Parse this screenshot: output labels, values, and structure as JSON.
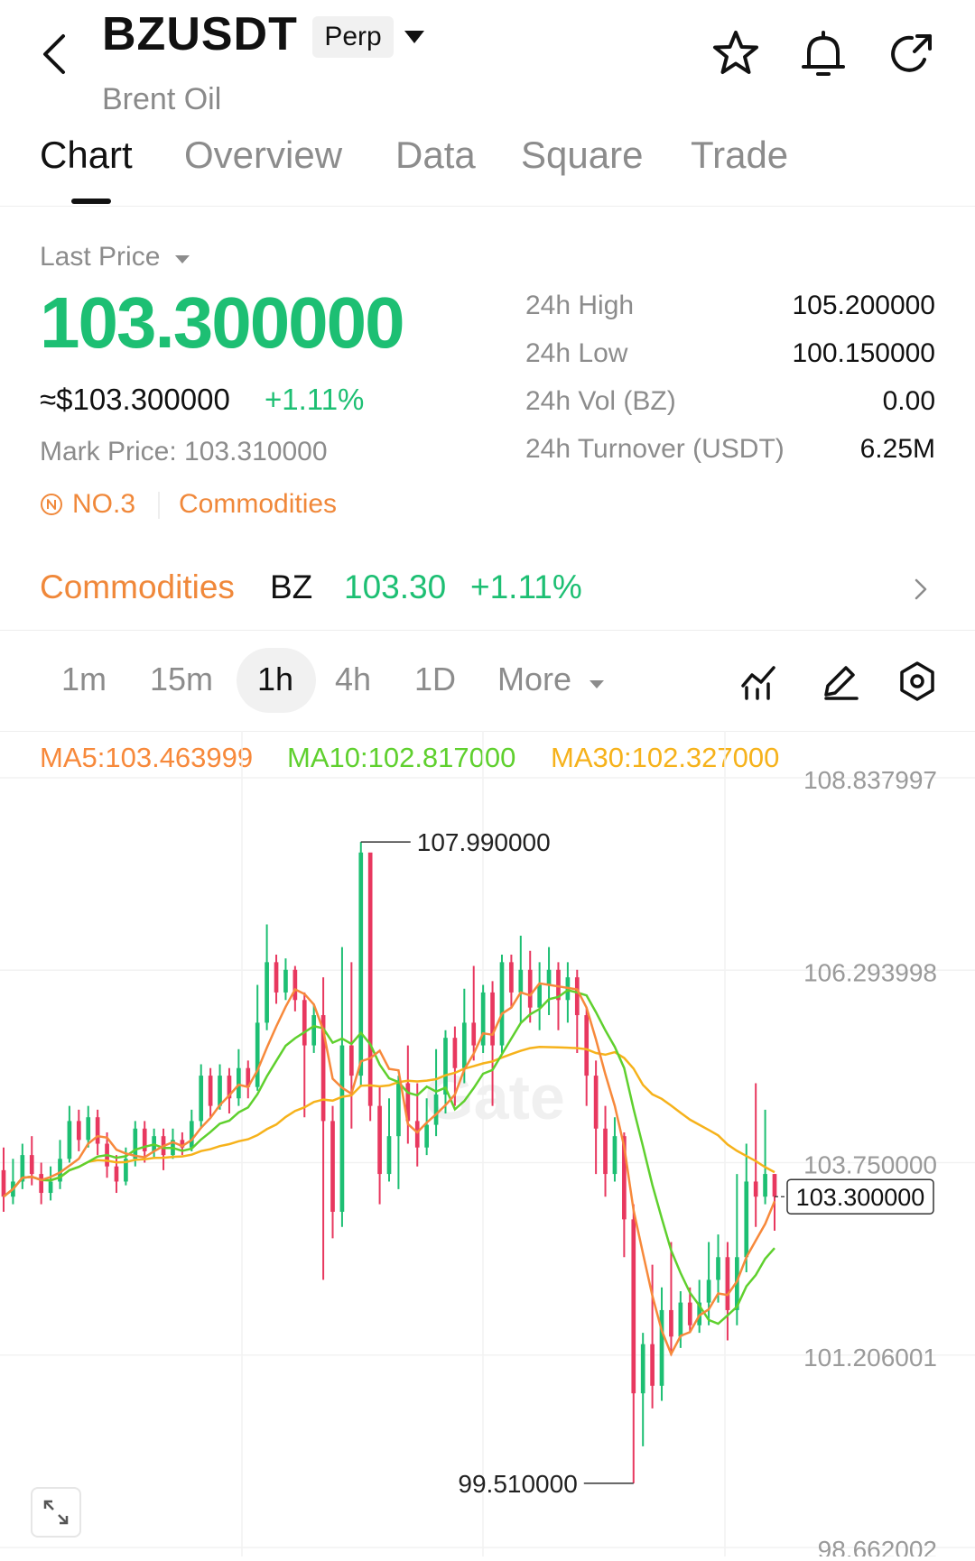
{
  "header": {
    "symbol": "BZUSDT",
    "badge": "Perp",
    "subtitle": "Brent Oil"
  },
  "tabs": [
    {
      "label": "Chart",
      "active": true
    },
    {
      "label": "Overview"
    },
    {
      "label": "Data"
    },
    {
      "label": "Square"
    },
    {
      "label": "Trade"
    }
  ],
  "price": {
    "label": "Last Price",
    "value": "103.300000",
    "usd": "≈$103.300000",
    "change": "+1.11%",
    "mark": "Mark Price: 103.310000",
    "rank": "NO.3",
    "category": "Commodities"
  },
  "stats": [
    {
      "label": "24h  High",
      "value": "105.200000"
    },
    {
      "label": "24h  Low",
      "value": "100.150000"
    },
    {
      "label": "24h  Vol (BZ)",
      "value": "0.00"
    },
    {
      "label": "24h  Turnover (USDT)",
      "value": "6.25M"
    }
  ],
  "commodity_bar": {
    "label": "Commodities",
    "symbol": "BZ",
    "price": "103.30",
    "change": "+1.11%"
  },
  "intervals": {
    "items": [
      "1m",
      "15m",
      "1h",
      "4h",
      "1D"
    ],
    "active": "1h",
    "more": "More"
  },
  "colors": {
    "up": "#1dbf73",
    "down": "#e8385f",
    "accent": "#f0883a",
    "ma5": "#f7893b",
    "ma10": "#5fd02e",
    "ma30": "#f6b21b"
  },
  "chart_data": {
    "type": "candlestick",
    "interval": "1h",
    "ma_labels": {
      "ma5": "MA5:103.463999",
      "ma10": "MA10:102.817000",
      "ma30": "MA30:102.327000"
    },
    "y_ticks": [
      "108.837997",
      "106.293998",
      "103.750000",
      "101.206001",
      "98.662002"
    ],
    "ylim": [
      98.662002,
      108.837997
    ],
    "max_label": "107.990000",
    "min_label": "99.510000",
    "current_price": "103.300000",
    "watermark": "Gate",
    "grid": true,
    "candles": [
      {
        "o": 103.65,
        "c": 103.3,
        "h": 103.95,
        "l": 103.1
      },
      {
        "o": 103.3,
        "c": 103.5,
        "h": 103.8,
        "l": 103.2
      },
      {
        "o": 103.5,
        "c": 103.85,
        "h": 104.0,
        "l": 103.4
      },
      {
        "o": 103.85,
        "c": 103.6,
        "h": 104.1,
        "l": 103.45
      },
      {
        "o": 103.6,
        "c": 103.35,
        "h": 103.75,
        "l": 103.2
      },
      {
        "o": 103.35,
        "c": 103.5,
        "h": 103.7,
        "l": 103.25
      },
      {
        "o": 103.5,
        "c": 103.8,
        "h": 104.05,
        "l": 103.4
      },
      {
        "o": 103.8,
        "c": 104.3,
        "h": 104.5,
        "l": 103.75
      },
      {
        "o": 104.3,
        "c": 104.05,
        "h": 104.45,
        "l": 103.9
      },
      {
        "o": 104.05,
        "c": 104.35,
        "h": 104.5,
        "l": 103.95
      },
      {
        "o": 104.35,
        "c": 104.0,
        "h": 104.45,
        "l": 103.85
      },
      {
        "o": 104.0,
        "c": 103.7,
        "h": 104.15,
        "l": 103.55
      },
      {
        "o": 103.7,
        "c": 103.5,
        "h": 103.85,
        "l": 103.35
      },
      {
        "o": 103.5,
        "c": 103.8,
        "h": 103.95,
        "l": 103.45
      },
      {
        "o": 103.8,
        "c": 104.2,
        "h": 104.3,
        "l": 103.7
      },
      {
        "o": 104.2,
        "c": 103.9,
        "h": 104.3,
        "l": 103.75
      },
      {
        "o": 103.9,
        "c": 104.1,
        "h": 104.2,
        "l": 103.8
      },
      {
        "o": 104.1,
        "c": 103.85,
        "h": 104.2,
        "l": 103.65
      },
      {
        "o": 103.85,
        "c": 104.05,
        "h": 104.2,
        "l": 103.8
      },
      {
        "o": 104.05,
        "c": 103.95,
        "h": 104.15,
        "l": 103.85
      },
      {
        "o": 103.95,
        "c": 104.3,
        "h": 104.45,
        "l": 103.9
      },
      {
        "o": 104.3,
        "c": 104.9,
        "h": 105.05,
        "l": 104.2
      },
      {
        "o": 104.9,
        "c": 104.5,
        "h": 105.0,
        "l": 104.35
      },
      {
        "o": 104.5,
        "c": 104.9,
        "h": 105.05,
        "l": 104.45
      },
      {
        "o": 104.9,
        "c": 104.6,
        "h": 105.0,
        "l": 104.4
      },
      {
        "o": 104.6,
        "c": 105.0,
        "h": 105.25,
        "l": 104.5
      },
      {
        "o": 105.0,
        "c": 104.75,
        "h": 105.1,
        "l": 104.6
      },
      {
        "o": 104.75,
        "c": 105.6,
        "h": 106.1,
        "l": 104.7
      },
      {
        "o": 105.6,
        "c": 106.4,
        "h": 106.9,
        "l": 105.5
      },
      {
        "o": 106.4,
        "c": 106.0,
        "h": 106.5,
        "l": 105.85
      },
      {
        "o": 106.0,
        "c": 106.3,
        "h": 106.45,
        "l": 105.9
      },
      {
        "o": 106.3,
        "c": 105.9,
        "h": 106.35,
        "l": 105.75
      },
      {
        "o": 105.9,
        "c": 105.3,
        "h": 106.0,
        "l": 104.35
      },
      {
        "o": 105.3,
        "c": 105.7,
        "h": 105.85,
        "l": 105.2
      },
      {
        "o": 105.7,
        "c": 104.3,
        "h": 106.2,
        "l": 102.2
      },
      {
        "o": 104.3,
        "c": 103.1,
        "h": 104.5,
        "l": 102.75
      },
      {
        "o": 103.1,
        "c": 105.3,
        "h": 106.6,
        "l": 102.9
      },
      {
        "o": 105.3,
        "c": 104.9,
        "h": 106.4,
        "l": 104.2
      },
      {
        "o": 104.9,
        "c": 107.85,
        "h": 107.99,
        "l": 104.75
      },
      {
        "o": 107.85,
        "c": 104.5,
        "h": 107.8,
        "l": 104.3
      },
      {
        "o": 104.5,
        "c": 103.6,
        "h": 104.75,
        "l": 103.2
      },
      {
        "o": 103.6,
        "c": 104.1,
        "h": 104.6,
        "l": 103.5
      },
      {
        "o": 104.1,
        "c": 104.8,
        "h": 104.9,
        "l": 103.4
      },
      {
        "o": 104.8,
        "c": 104.3,
        "h": 105.3,
        "l": 104.0
      },
      {
        "o": 104.3,
        "c": 103.95,
        "h": 104.8,
        "l": 103.7
      },
      {
        "o": 103.95,
        "c": 104.25,
        "h": 104.6,
        "l": 103.85
      },
      {
        "o": 104.25,
        "c": 104.65,
        "h": 105.25,
        "l": 104.1
      },
      {
        "o": 104.65,
        "c": 105.4,
        "h": 105.5,
        "l": 104.4
      },
      {
        "o": 105.4,
        "c": 105.0,
        "h": 105.55,
        "l": 104.5
      },
      {
        "o": 105.0,
        "c": 105.6,
        "h": 106.05,
        "l": 104.8
      },
      {
        "o": 105.6,
        "c": 105.3,
        "h": 106.35,
        "l": 105.1
      },
      {
        "o": 105.3,
        "c": 106.0,
        "h": 106.1,
        "l": 105.2
      },
      {
        "o": 106.0,
        "c": 105.3,
        "h": 106.15,
        "l": 104.5
      },
      {
        "o": 105.3,
        "c": 106.4,
        "h": 106.5,
        "l": 105.2
      },
      {
        "o": 106.4,
        "c": 106.0,
        "h": 106.5,
        "l": 105.8
      },
      {
        "o": 106.0,
        "c": 106.3,
        "h": 106.75,
        "l": 105.6
      },
      {
        "o": 106.3,
        "c": 105.8,
        "h": 106.55,
        "l": 105.6
      },
      {
        "o": 105.8,
        "c": 106.1,
        "h": 106.4,
        "l": 105.5
      },
      {
        "o": 106.1,
        "c": 106.3,
        "h": 106.6,
        "l": 105.7
      },
      {
        "o": 106.3,
        "c": 105.9,
        "h": 106.4,
        "l": 105.5
      },
      {
        "o": 105.9,
        "c": 106.2,
        "h": 106.4,
        "l": 105.6
      },
      {
        "o": 106.2,
        "c": 105.7,
        "h": 106.3,
        "l": 105.2
      },
      {
        "o": 105.7,
        "c": 104.9,
        "h": 105.8,
        "l": 104.5
      },
      {
        "o": 104.9,
        "c": 104.2,
        "h": 105.1,
        "l": 103.6
      },
      {
        "o": 104.2,
        "c": 103.6,
        "h": 104.5,
        "l": 103.3
      },
      {
        "o": 103.6,
        "c": 104.1,
        "h": 104.35,
        "l": 103.5
      },
      {
        "o": 104.1,
        "c": 103.0,
        "h": 104.15,
        "l": 102.5
      },
      {
        "o": 103.0,
        "c": 100.7,
        "h": 103.2,
        "l": 99.51
      },
      {
        "o": 100.7,
        "c": 101.35,
        "h": 101.5,
        "l": 100.0
      },
      {
        "o": 101.35,
        "c": 100.8,
        "h": 102.4,
        "l": 100.5
      },
      {
        "o": 100.8,
        "c": 101.8,
        "h": 102.1,
        "l": 100.6
      },
      {
        "o": 101.8,
        "c": 101.45,
        "h": 102.7,
        "l": 101.2
      },
      {
        "o": 101.45,
        "c": 101.9,
        "h": 102.05,
        "l": 101.3
      },
      {
        "o": 101.9,
        "c": 101.6,
        "h": 102.1,
        "l": 101.5
      },
      {
        "o": 101.6,
        "c": 101.9,
        "h": 102.2,
        "l": 101.5
      },
      {
        "o": 101.9,
        "c": 102.2,
        "h": 102.7,
        "l": 101.6
      },
      {
        "o": 102.2,
        "c": 102.5,
        "h": 102.8,
        "l": 101.9
      },
      {
        "o": 102.5,
        "c": 101.8,
        "h": 102.7,
        "l": 101.4
      },
      {
        "o": 101.8,
        "c": 102.5,
        "h": 103.6,
        "l": 101.6
      },
      {
        "o": 102.5,
        "c": 103.5,
        "h": 104.0,
        "l": 102.3
      },
      {
        "o": 103.5,
        "c": 103.3,
        "h": 104.8,
        "l": 102.9
      },
      {
        "o": 103.3,
        "c": 103.6,
        "h": 104.45,
        "l": 103.2
      },
      {
        "o": 103.6,
        "c": 103.3,
        "h": 103.6,
        "l": 102.85
      }
    ]
  }
}
